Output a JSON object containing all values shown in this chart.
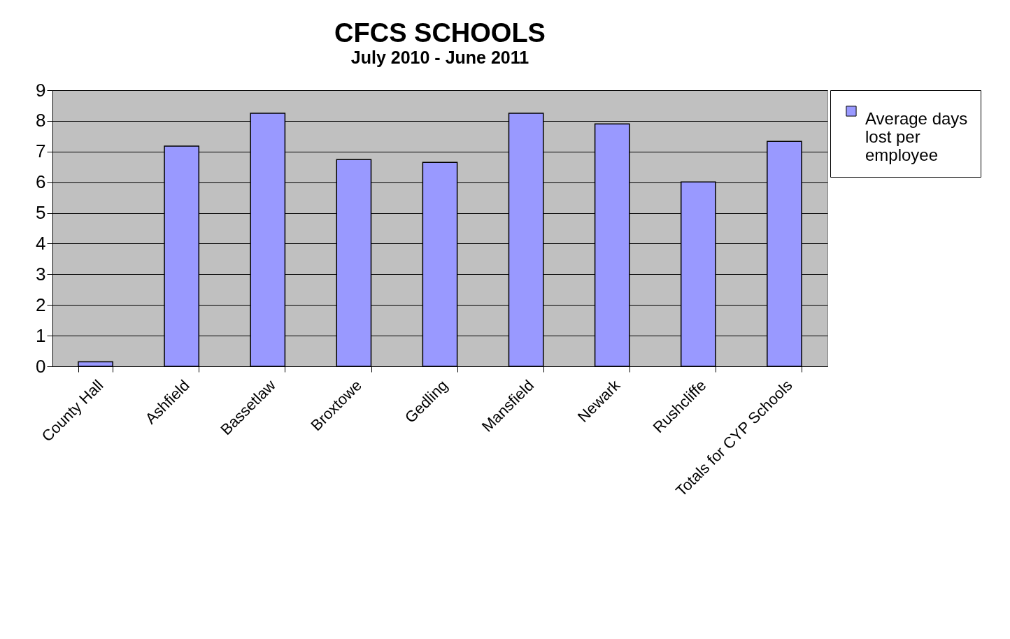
{
  "chart_data": {
    "type": "bar",
    "title": "CFCS SCHOOLS",
    "subtitle": "July 2010 - June 2011",
    "categories": [
      "County Hall",
      "Ashfield",
      "Bassetlaw",
      "Broxtowe",
      "Gedling",
      "Mansfield",
      "Newark",
      "Rushcliffe",
      "Totals for CYP Schools"
    ],
    "series": [
      {
        "name": "Average days lost per employee",
        "color": "#9999ff",
        "values": [
          0.15,
          7.18,
          8.25,
          6.74,
          6.65,
          8.25,
          7.9,
          6.01,
          7.33
        ]
      }
    ],
    "ylim": [
      0,
      9
    ],
    "yticks": [
      0,
      1,
      2,
      3,
      4,
      5,
      6,
      7,
      8,
      9
    ],
    "grid": "y",
    "legend": "top right"
  }
}
